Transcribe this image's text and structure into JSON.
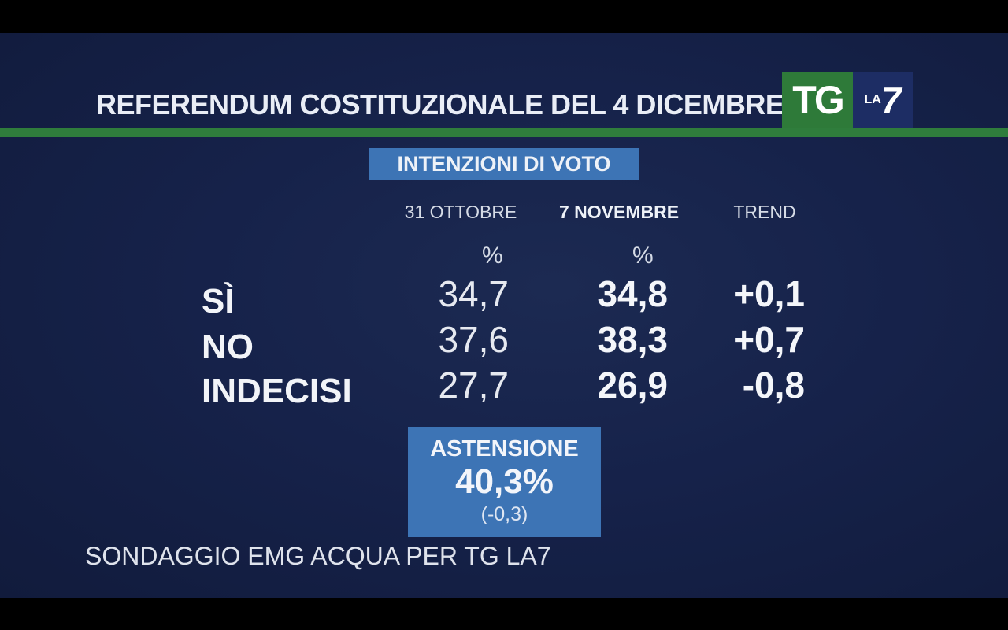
{
  "header": {
    "title": "REFERENDUM COSTITUZIONALE DEL 4 DICEMBRE",
    "logo_tg": "TG",
    "logo_la": "LA",
    "logo_7": "7"
  },
  "badge": "INTENZIONI DI VOTO",
  "columns": {
    "col1": "31 OTTOBRE",
    "col2": "7 NOVEMBRE",
    "col3": "TREND",
    "pct_symbol": "%"
  },
  "rows": [
    {
      "label": "SÌ",
      "oct31": "34,7",
      "nov7": "34,8",
      "trend": "+0,1"
    },
    {
      "label": "NO",
      "oct31": "37,6",
      "nov7": "38,3",
      "trend": "+0,7"
    },
    {
      "label": "INDECISI",
      "oct31": "27,7",
      "nov7": "26,9",
      "trend": "-0,8"
    }
  ],
  "astensione": {
    "title": "ASTENSIONE",
    "value": "40,3%",
    "delta": "(-0,3)"
  },
  "source": "SONDAGGIO EMG ACQUA PER TG LA7",
  "colors": {
    "background": "#16224a",
    "green_band": "#2f7d3c",
    "box_blue": "#3d74b5"
  }
}
